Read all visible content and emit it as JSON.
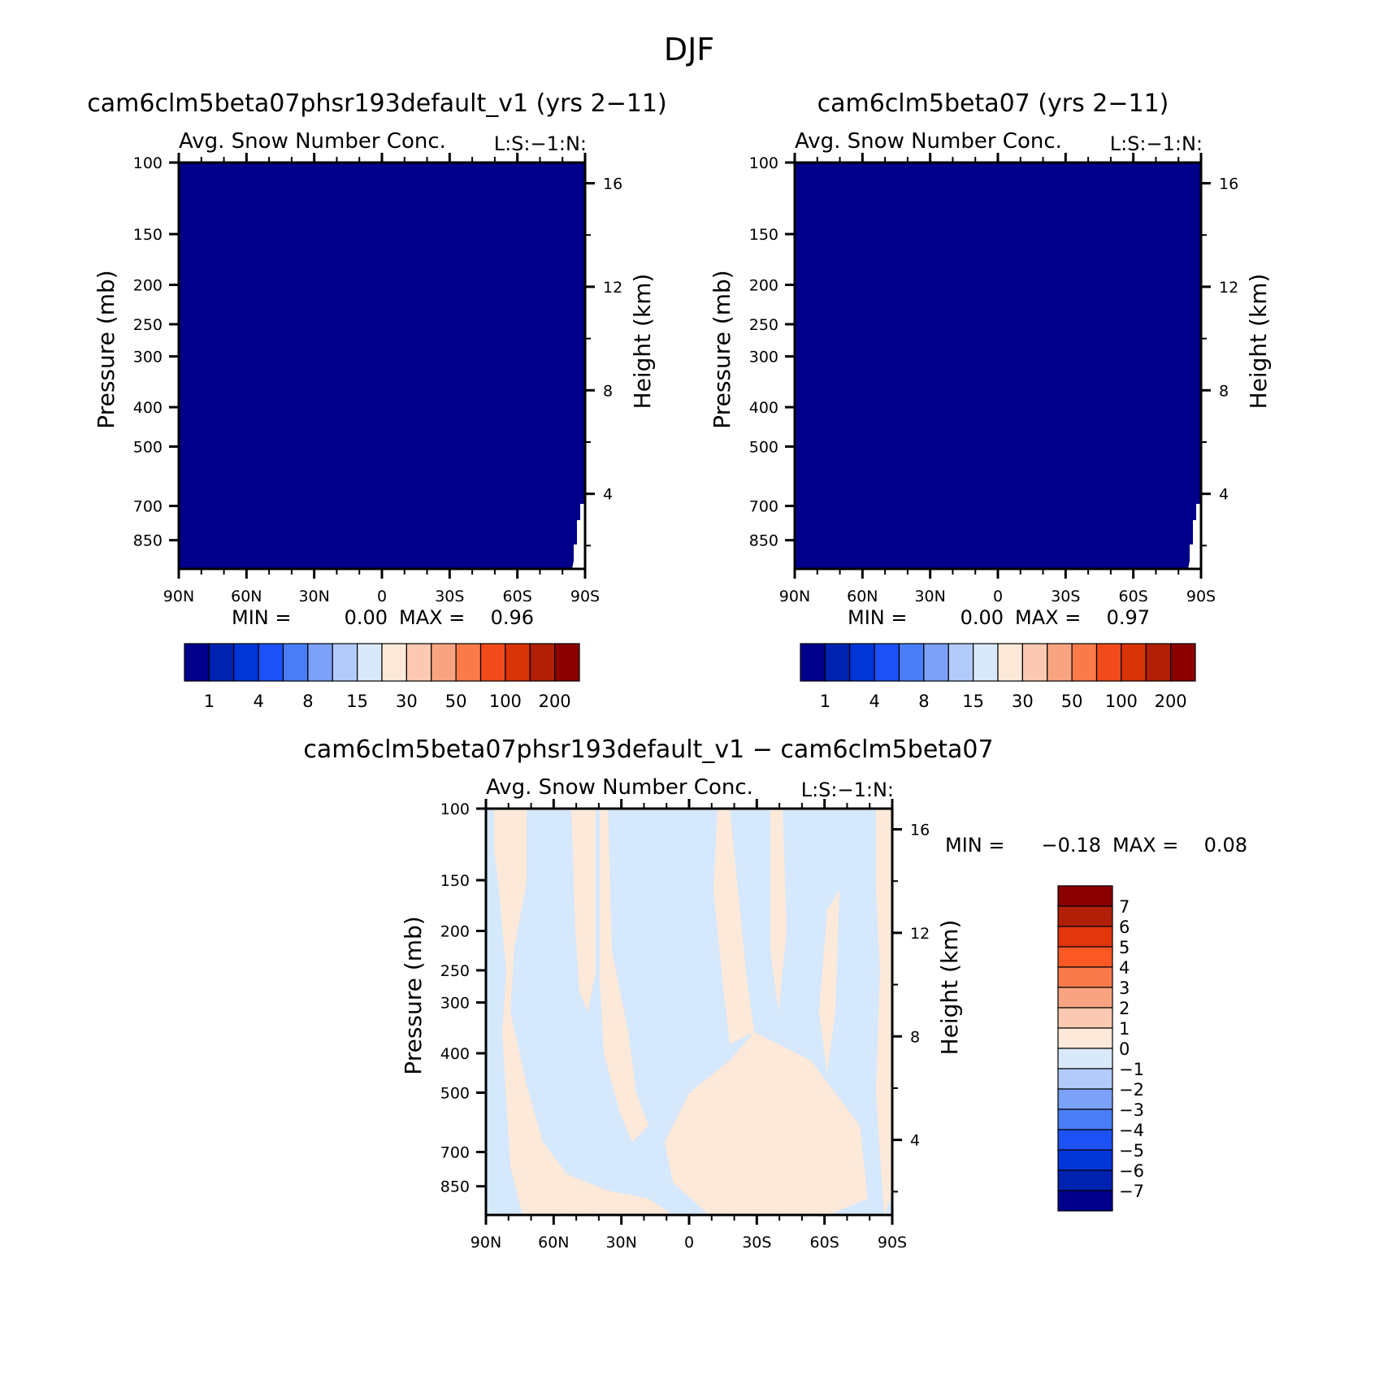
{
  "page_title": "DJF",
  "chart_data": [
    {
      "type": "heatmap",
      "title": "cam6clm5beta07phsr193default_v1 (yrs 2−11)",
      "subtitle": "Avg. Snow Number Conc.",
      "units_tag": "L:S:−1:N:",
      "xlabel": "",
      "ylabel": "Pressure (mb)",
      "ylabel_right": "Height (km)",
      "x_ticks": [
        "90N",
        "60N",
        "30N",
        "0",
        "30S",
        "60S",
        "90S"
      ],
      "y_ticks": [
        "100",
        "150",
        "200",
        "250",
        "300",
        "400",
        "500",
        "700",
        "850"
      ],
      "y_right_ticks": [
        "16",
        "12",
        "8",
        "4"
      ],
      "min_label": "MIN =",
      "min_value": "0.00",
      "max_label": "MAX =",
      "max_value": "0.96",
      "fill_color": "#00008b",
      "colorbar_labels": [
        "1",
        "4",
        "8",
        "15",
        "30",
        "50",
        "100",
        "200"
      ]
    },
    {
      "type": "heatmap",
      "title": "cam6clm5beta07 (yrs 2−11)",
      "subtitle": "Avg. Snow Number Conc.",
      "units_tag": "L:S:−1:N:",
      "xlabel": "",
      "ylabel": "Pressure (mb)",
      "ylabel_right": "Height (km)",
      "x_ticks": [
        "90N",
        "60N",
        "30N",
        "0",
        "30S",
        "60S",
        "90S"
      ],
      "y_ticks": [
        "100",
        "150",
        "200",
        "250",
        "300",
        "400",
        "500",
        "700",
        "850"
      ],
      "y_right_ticks": [
        "16",
        "12",
        "8",
        "4"
      ],
      "min_label": "MIN =",
      "min_value": "0.00",
      "max_label": "MAX =",
      "max_value": "0.97",
      "fill_color": "#00008b",
      "colorbar_labels": [
        "1",
        "4",
        "8",
        "15",
        "30",
        "50",
        "100",
        "200"
      ]
    },
    {
      "type": "heatmap",
      "title": "cam6clm5beta07phsr193default_v1 − cam6clm5beta07",
      "subtitle": "Avg. Snow Number Conc.",
      "units_tag": "L:S:−1:N:",
      "xlabel": "",
      "ylabel": "Pressure (mb)",
      "ylabel_right": "Height (km)",
      "x_ticks": [
        "90N",
        "60N",
        "30N",
        "0",
        "30S",
        "60S",
        "90S"
      ],
      "y_ticks": [
        "100",
        "150",
        "200",
        "250",
        "300",
        "400",
        "500",
        "700",
        "850"
      ],
      "y_right_ticks": [
        "16",
        "12",
        "8",
        "4"
      ],
      "min_label": "MIN =",
      "min_value": "−0.18",
      "max_label": "MAX =",
      "max_value": "0.08",
      "colorbar_labels": [
        "7",
        "6",
        "5",
        "4",
        "3",
        "2",
        "1",
        "0",
        "−1",
        "−2",
        "−3",
        "−4",
        "−5",
        "−6",
        "−7"
      ],
      "positive_color": "#fde9d9",
      "negative_color": "#d6e8fb"
    }
  ],
  "colors": {
    "seq_colorbar": [
      "#00008b",
      "#0022b0",
      "#0035d8",
      "#1c52f5",
      "#4a7ef8",
      "#7ba1f8",
      "#b3cbfb",
      "#d8e9fb",
      "#fde9d9",
      "#fbc9b1",
      "#f9a481",
      "#fa7a4a",
      "#f24a1a",
      "#d93408",
      "#b12006",
      "#8a0000"
    ],
    "div_colorbar": [
      "#8a0000",
      "#b12006",
      "#e2360c",
      "#fa5825",
      "#fa7a4a",
      "#f9a481",
      "#fbc9b1",
      "#fde9d9",
      "#d8e9fb",
      "#b3cbfb",
      "#7ba1f8",
      "#4a7ef8",
      "#1c52f5",
      "#0035d8",
      "#0022b0",
      "#00008b"
    ]
  }
}
